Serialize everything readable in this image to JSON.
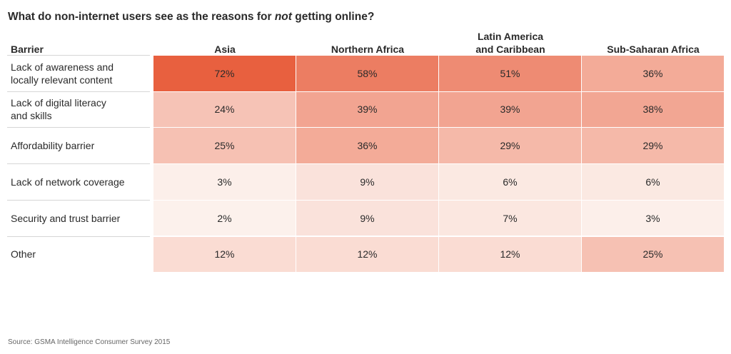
{
  "title": {
    "prefix": "What do non-internet users see as the reasons for ",
    "emphasis": "not",
    "suffix": " getting online?"
  },
  "chart_data": {
    "type": "table",
    "row_header": "Barrier",
    "columns": [
      [
        "Asia"
      ],
      [
        "Northern Africa"
      ],
      [
        "Latin America",
        "and Caribbean"
      ],
      [
        "Sub-Saharan Africa"
      ]
    ],
    "rows": [
      {
        "label": [
          "Lack of awareness and",
          "locally relevant content"
        ],
        "values": [
          72,
          58,
          51,
          36
        ]
      },
      {
        "label": [
          "Lack of digital literacy",
          "and skills"
        ],
        "values": [
          24,
          39,
          39,
          38
        ]
      },
      {
        "label": [
          "Affordability barrier"
        ],
        "values": [
          25,
          36,
          29,
          29
        ]
      },
      {
        "label": [
          "Lack of network coverage"
        ],
        "values": [
          3,
          9,
          6,
          6
        ]
      },
      {
        "label": [
          "Security and trust barrier"
        ],
        "values": [
          2,
          9,
          7,
          3
        ]
      },
      {
        "label": [
          "Other"
        ],
        "values": [
          12,
          12,
          12,
          25
        ]
      }
    ],
    "unit": "%",
    "color_low": "#fdf5f1",
    "color_high": "#e8603f"
  },
  "source": "Source: GSMA Intelligence Consumer Survey 2015"
}
